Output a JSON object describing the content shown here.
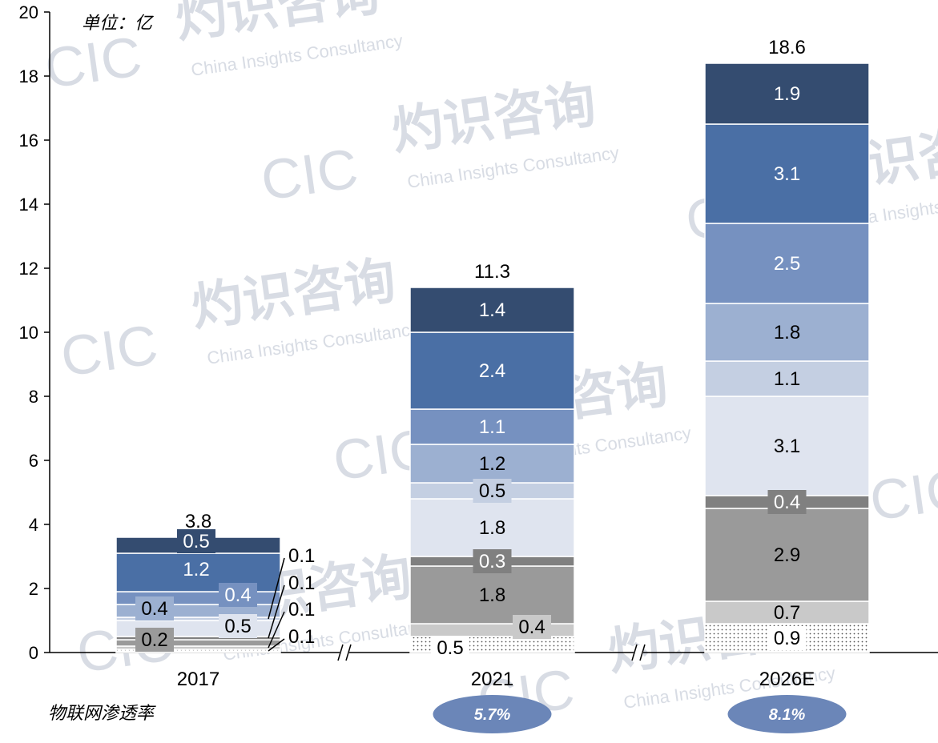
{
  "chart_data": {
    "type": "bar",
    "stacked": true,
    "unit_label": "单位：亿",
    "ylim": [
      0,
      20
    ],
    "yticks": [
      0,
      2,
      4,
      6,
      8,
      10,
      12,
      14,
      16,
      18,
      20
    ],
    "categories": [
      "2017",
      "2021",
      "2026E"
    ],
    "totals": [
      "3.8",
      "11.3",
      "18.6"
    ],
    "series": [
      {
        "color": "#ffffff",
        "pattern": "dots",
        "values": [
          0.1,
          0.5,
          0.9
        ],
        "labels": [
          "0.1",
          "0.5",
          "0.9"
        ]
      },
      {
        "color": "#c9c9c9",
        "values": [
          0.1,
          0.4,
          0.7
        ],
        "labels": [
          "0.1",
          "0.4",
          "0.7"
        ]
      },
      {
        "color": "#9a9a9a",
        "values": [
          0.2,
          1.8,
          2.9
        ],
        "labels": [
          "0.2",
          "1.8",
          "2.9"
        ]
      },
      {
        "color": "#808080",
        "values": [
          0.1,
          0.3,
          0.4
        ],
        "labels": [
          "0.1",
          "0.3",
          "0.4"
        ]
      },
      {
        "color": "#dfe4ef",
        "values": [
          0.5,
          1.8,
          3.1
        ],
        "labels": [
          "0.5",
          "1.8",
          "3.1"
        ]
      },
      {
        "color": "#c4cfe2",
        "values": [
          0.1,
          0.5,
          1.1
        ],
        "labels": [
          "0.1",
          "0.5",
          "1.1"
        ]
      },
      {
        "color": "#9cb0d1",
        "values": [
          0.4,
          1.2,
          1.8
        ],
        "labels": [
          "0.4",
          "1.2",
          "1.8"
        ]
      },
      {
        "color": "#7691c0",
        "values": [
          0.4,
          1.1,
          2.5
        ],
        "labels": [
          "0.4",
          "1.1",
          "2.5"
        ]
      },
      {
        "color": "#4a6fa5",
        "values": [
          1.2,
          2.4,
          3.1
        ],
        "labels": [
          "1.2",
          "2.4",
          "3.1"
        ]
      },
      {
        "color": "#344c70",
        "values": [
          0.5,
          1.4,
          1.9
        ],
        "labels": [
          "0.5",
          "1.4",
          "1.9"
        ]
      }
    ],
    "penetration_label": "物联网渗透率",
    "penetration_rates": [
      "",
      "5.7%",
      "8.1%"
    ],
    "watermark": {
      "logo": "CIC",
      "cn": "灼识咨询",
      "en": "China Insights Consultancy"
    }
  }
}
